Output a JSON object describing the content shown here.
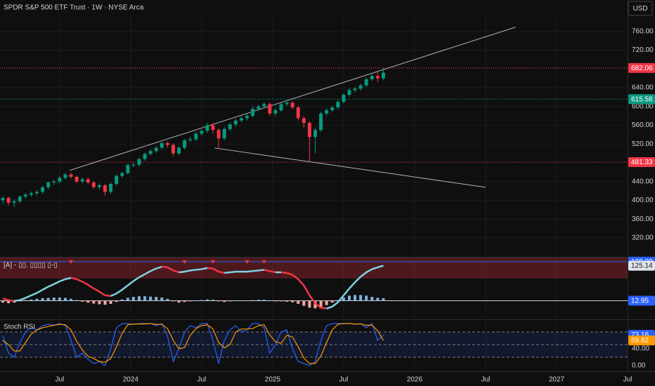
{
  "chart_data": [
    {
      "type": "candlestick",
      "title": "SPDR S&P 500 ETF Trust · 1W · NYSE Arca",
      "currency": "USD",
      "up_color": "#089981",
      "down_color": "#f23645",
      "x": [
        2023.1,
        2023.14,
        2023.18,
        2023.22,
        2023.26,
        2023.3,
        2023.34,
        2023.38,
        2023.42,
        2023.46,
        2023.5,
        2023.54,
        2023.58,
        2023.62,
        2023.66,
        2023.7,
        2023.74,
        2023.78,
        2023.82,
        2023.86,
        2023.9,
        2023.94,
        2023.98,
        2024.02,
        2024.06,
        2024.1,
        2024.14,
        2024.18,
        2024.22,
        2024.26,
        2024.3,
        2024.34,
        2024.38,
        2024.42,
        2024.46,
        2024.5,
        2024.54,
        2024.58,
        2024.62,
        2024.66,
        2024.7,
        2024.74,
        2024.78,
        2024.82,
        2024.86,
        2024.9,
        2024.94,
        2024.98,
        2025.02,
        2025.06,
        2025.1,
        2025.14,
        2025.18,
        2025.22,
        2025.26,
        2025.3,
        2025.34,
        2025.38,
        2025.42,
        2025.46,
        2025.5,
        2025.54,
        2025.58,
        2025.62,
        2025.66,
        2025.7,
        2025.74,
        2025.78
      ],
      "open": [
        400,
        405,
        395,
        398,
        408,
        412,
        415,
        418,
        428,
        438,
        440,
        448,
        455,
        450,
        440,
        445,
        438,
        428,
        432,
        418,
        435,
        452,
        458,
        475,
        476,
        488,
        499,
        505,
        512,
        522,
        518,
        500,
        512,
        528,
        530,
        542,
        548,
        560,
        550,
        532,
        552,
        562,
        570,
        575,
        580,
        595,
        600,
        605,
        585,
        592,
        605,
        608,
        598,
        575,
        565,
        535,
        550,
        585,
        592,
        598,
        610,
        625,
        635,
        638,
        645,
        658,
        665,
        660
      ],
      "high": [
        409,
        408,
        402,
        411,
        416,
        419,
        422,
        431,
        441,
        444,
        452,
        459,
        459,
        453,
        449,
        449,
        442,
        436,
        435,
        438,
        455,
        461,
        478,
        481,
        491,
        502,
        509,
        515,
        525,
        526,
        521,
        515,
        531,
        535,
        546,
        552,
        565,
        565,
        554,
        556,
        566,
        574,
        580,
        585,
        600,
        604,
        609,
        609,
        597,
        608,
        613,
        612,
        602,
        580,
        568,
        555,
        589,
        596,
        602,
        614,
        628,
        639,
        642,
        649,
        662,
        669,
        673,
        682
      ],
      "low": [
        392,
        389,
        385,
        394,
        404,
        408,
        410,
        414,
        424,
        433,
        436,
        444,
        446,
        436,
        436,
        434,
        424,
        423,
        410,
        414,
        431,
        448,
        455,
        470,
        472,
        484,
        495,
        501,
        508,
        512,
        494,
        496,
        508,
        524,
        526,
        538,
        544,
        542,
        510,
        528,
        548,
        557,
        566,
        570,
        576,
        591,
        596,
        580,
        580,
        588,
        601,
        594,
        570,
        555,
        481,
        500,
        546,
        580,
        588,
        594,
        606,
        621,
        630,
        634,
        641,
        654,
        652,
        656
      ],
      "close": [
        405,
        395,
        398,
        408,
        412,
        415,
        418,
        428,
        438,
        440,
        448,
        455,
        450,
        440,
        445,
        438,
        428,
        432,
        418,
        435,
        452,
        458,
        475,
        476,
        488,
        499,
        505,
        512,
        522,
        518,
        500,
        512,
        528,
        530,
        542,
        548,
        560,
        550,
        532,
        552,
        562,
        570,
        575,
        580,
        595,
        600,
        605,
        585,
        592,
        605,
        608,
        598,
        575,
        565,
        535,
        550,
        585,
        592,
        598,
        610,
        625,
        635,
        638,
        645,
        658,
        665,
        660,
        672
      ],
      "xlim": [
        2023.08,
        2027.5
      ],
      "xticks": [
        {
          "value": 2023.5,
          "label": "Jul"
        },
        2024,
        {
          "value": 2024.5,
          "label": "Jul"
        },
        2025,
        {
          "value": 2025.5,
          "label": "Jul"
        },
        2026,
        {
          "value": 2026.5,
          "label": "Jul"
        },
        2027,
        {
          "value": 2027.5,
          "label": "Jul"
        }
      ],
      "ylim": [
        281,
        794
      ],
      "yticks": [
        {
          "value": 320,
          "label": "320.00"
        },
        {
          "value": 360,
          "label": "360.00"
        },
        {
          "value": 400,
          "label": "400.00"
        },
        {
          "value": 440,
          "label": "440.00"
        },
        {
          "value": 520,
          "label": "520.00"
        },
        {
          "value": 560,
          "label": "560.00"
        },
        {
          "value": 600,
          "label": "600.00"
        },
        {
          "value": 640,
          "label": "640.00"
        },
        {
          "value": 720,
          "label": "720.00"
        },
        {
          "value": 760,
          "label": "760.00"
        }
      ],
      "levels": [
        {
          "value": 682.06,
          "color": "#f23645"
        },
        {
          "value": 615.58,
          "color": "#089981"
        },
        {
          "value": 481.33,
          "color": "#f23645"
        }
      ],
      "trendlines": [
        {
          "x": [
            2023.57,
            2026.71
          ],
          "y": [
            463.7,
            769
          ]
        },
        {
          "x": [
            2024.59,
            2026.5
          ],
          "y": [
            511.6,
            427.8
          ]
        }
      ]
    },
    {
      "type": "macd",
      "title": "[A] - ▯▯. ▯▯▯▯ ▯-▯",
      "line": [
        20,
        15,
        12,
        15,
        22,
        30,
        38,
        48,
        58,
        66,
        75,
        82,
        86,
        82,
        74,
        64,
        52,
        42,
        30,
        28,
        36,
        48,
        62,
        76,
        88,
        98,
        108,
        116,
        122,
        120,
        110,
        104,
        106,
        110,
        112,
        114,
        118,
        116,
        106,
        102,
        104,
        106,
        106,
        106,
        108,
        110,
        112,
        108,
        104,
        104,
        102,
        96,
        82,
        62,
        30,
        5,
        -10,
        -12,
        -6,
        8,
        30,
        52,
        72,
        90,
        104,
        114,
        120,
        125.14
      ],
      "histogram": [
        -6,
        -8,
        -6,
        -2,
        2,
        4,
        6,
        8,
        9,
        10,
        10,
        9,
        6,
        2,
        -3,
        -6,
        -9,
        -11,
        -13,
        -10,
        -4,
        4,
        9,
        12,
        14,
        14,
        13,
        12,
        10,
        6,
        -2,
        -6,
        -4,
        -2,
        0,
        2,
        4,
        3,
        -2,
        -4,
        -2,
        0,
        0,
        1,
        2,
        3,
        3,
        0,
        -2,
        -2,
        -3,
        -5,
        -10,
        -16,
        -22,
        -24,
        -20,
        -14,
        -6,
        2,
        10,
        16,
        18,
        18,
        16,
        12,
        9,
        8
      ],
      "up_color": "#7fb2dd",
      "down_color": "#f7a5a5",
      "rise_color": "#7fd3e6",
      "fall_color": "#f23645",
      "signals": [
        2023.58,
        2024.38,
        2024.58,
        2024.82,
        2024.94
      ],
      "ylim": [
        -40,
        140
      ],
      "levels": [
        {
          "value": 138.09,
          "color": "#2962ff"
        },
        {
          "value": 12.95,
          "color": "#2962ff"
        }
      ]
    },
    {
      "type": "line",
      "title": "Stoch RSI",
      "series": [
        {
          "color": "#2962ff",
          "values": [
            70,
            30,
            20,
            55,
            80,
            90,
            85,
            95,
            98,
            96,
            100,
            95,
            60,
            20,
            30,
            15,
            5,
            10,
            0,
            40,
            90,
            100,
            100,
            98,
            100,
            100,
            100,
            95,
            100,
            70,
            10,
            40,
            80,
            95,
            90,
            100,
            100,
            60,
            5,
            60,
            85,
            95,
            80,
            85,
            100,
            100,
            90,
            30,
            50,
            80,
            85,
            40,
            10,
            5,
            0,
            10,
            60,
            95,
            100,
            100,
            100,
            100,
            98,
            100,
            90,
            100,
            60,
            73.16
          ]
        },
        {
          "color": "#ff9800",
          "values": [
            60,
            50,
            35,
            35,
            55,
            75,
            85,
            90,
            93,
            96,
            98,
            97,
            85,
            58,
            37,
            22,
            17,
            10,
            8,
            17,
            45,
            77,
            97,
            99,
            99,
            99,
            100,
            98,
            98,
            88,
            60,
            40,
            43,
            72,
            88,
            95,
            97,
            87,
            55,
            42,
            50,
            80,
            87,
            87,
            88,
            95,
            97,
            73,
            57,
            53,
            72,
            68,
            45,
            18,
            5,
            5,
            23,
            55,
            85,
            98,
            100,
            100,
            99,
            99,
            96,
            96,
            83,
            59.82
          ]
        }
      ],
      "ylim": [
        0,
        100
      ],
      "yticks": [
        {
          "value": 0,
          "label": "0.00"
        },
        {
          "value": 40,
          "label": "40.00"
        }
      ],
      "levels": [
        80,
        50,
        20
      ]
    }
  ]
}
